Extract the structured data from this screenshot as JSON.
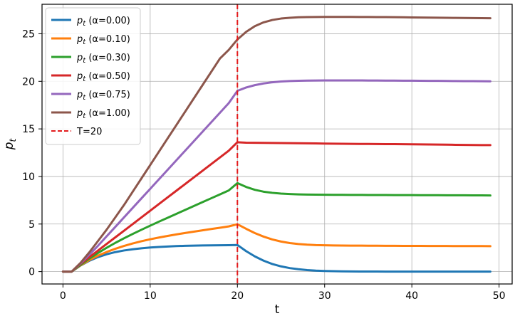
{
  "chart_data": {
    "type": "line",
    "title": "",
    "xlabel": "t",
    "ylabel": "p_t",
    "xlim": [
      -2.4,
      51.5
    ],
    "ylim": [
      -1.3,
      28.1
    ],
    "xticks": [
      0,
      10,
      20,
      30,
      40,
      50
    ],
    "yticks": [
      0,
      5,
      10,
      15,
      20,
      25
    ],
    "grid": true,
    "legend_position": "top-left",
    "x": [
      0,
      1,
      2,
      3,
      4,
      5,
      6,
      7,
      8,
      9,
      10,
      11,
      12,
      13,
      14,
      15,
      16,
      17,
      18,
      19,
      20,
      21,
      22,
      23,
      24,
      25,
      26,
      27,
      28,
      29,
      30,
      31,
      32,
      33,
      34,
      35,
      36,
      37,
      38,
      39,
      40,
      41,
      42,
      43,
      44,
      45,
      46,
      47,
      48,
      49
    ],
    "series": [
      {
        "name": "p_t (α=0.00)",
        "color": "#1f77b4",
        "values": [
          0,
          0,
          0.63,
          1.13,
          1.52,
          1.82,
          2.05,
          2.22,
          2.35,
          2.45,
          2.53,
          2.59,
          2.64,
          2.68,
          2.71,
          2.73,
          2.75,
          2.76,
          2.77,
          2.78,
          2.8,
          2.15,
          1.6,
          1.15,
          0.8,
          0.55,
          0.37,
          0.25,
          0.16,
          0.1,
          0.07,
          0.05,
          0.03,
          0.02,
          0.01,
          0.01,
          0.01,
          0.0,
          0.0,
          0.0,
          0.0,
          0.0,
          0.0,
          0.0,
          0.0,
          0.0,
          0.0,
          0.0,
          0.0,
          0.0
        ]
      },
      {
        "name": "p_t (α=0.10)",
        "color": "#ff7f0e",
        "values": [
          0,
          0,
          0.65,
          1.2,
          1.67,
          2.06,
          2.4,
          2.7,
          2.96,
          3.19,
          3.4,
          3.58,
          3.75,
          3.91,
          4.06,
          4.2,
          4.34,
          4.48,
          4.61,
          4.75,
          4.98,
          4.5,
          4.05,
          3.68,
          3.38,
          3.16,
          3.0,
          2.9,
          2.83,
          2.79,
          2.77,
          2.75,
          2.74,
          2.73,
          2.73,
          2.72,
          2.72,
          2.71,
          2.71,
          2.7,
          2.7,
          2.7,
          2.69,
          2.69,
          2.69,
          2.68,
          2.68,
          2.68,
          2.68,
          2.67
        ]
      },
      {
        "name": "p_t (α=0.30)",
        "color": "#2ca02c",
        "values": [
          0,
          0,
          0.7,
          1.35,
          1.95,
          2.5,
          3.02,
          3.5,
          3.96,
          4.4,
          4.83,
          5.25,
          5.66,
          6.07,
          6.48,
          6.89,
          7.3,
          7.71,
          8.12,
          8.53,
          9.3,
          8.9,
          8.6,
          8.4,
          8.28,
          8.2,
          8.15,
          8.12,
          8.1,
          8.09,
          8.08,
          8.07,
          8.07,
          8.06,
          8.06,
          8.05,
          8.05,
          8.05,
          8.04,
          8.04,
          8.04,
          8.03,
          8.03,
          8.03,
          8.02,
          8.02,
          8.02,
          8.01,
          8.01,
          8.0
        ]
      },
      {
        "name": "p_t (α=0.50)",
        "color": "#d62728",
        "values": [
          0,
          0,
          0.8,
          1.5,
          2.2,
          2.9,
          3.6,
          4.3,
          5.0,
          5.7,
          6.4,
          7.1,
          7.8,
          8.5,
          9.2,
          9.9,
          10.6,
          11.3,
          12.0,
          12.7,
          13.6,
          13.55,
          13.54,
          13.53,
          13.52,
          13.51,
          13.5,
          13.49,
          13.48,
          13.47,
          13.46,
          13.45,
          13.44,
          13.43,
          13.42,
          13.42,
          13.41,
          13.4,
          13.4,
          13.39,
          13.38,
          13.37,
          13.36,
          13.35,
          13.34,
          13.33,
          13.32,
          13.31,
          13.3,
          13.3
        ]
      },
      {
        "name": "p_t (α=0.75)",
        "color": "#9467bd",
        "values": [
          0,
          0,
          0.85,
          1.75,
          2.7,
          3.7,
          4.7,
          5.7,
          6.7,
          7.7,
          8.7,
          9.7,
          10.7,
          11.7,
          12.7,
          13.7,
          14.7,
          15.7,
          16.7,
          17.7,
          19.0,
          19.35,
          19.6,
          19.78,
          19.9,
          19.98,
          20.03,
          20.06,
          20.08,
          20.09,
          20.1,
          20.1,
          20.1,
          20.1,
          20.1,
          20.09,
          20.09,
          20.08,
          20.08,
          20.07,
          20.07,
          20.06,
          20.05,
          20.05,
          20.04,
          20.03,
          20.02,
          20.02,
          20.01,
          20.0
        ]
      },
      {
        "name": "p_t (α=1.00)",
        "color": "#8c564b",
        "values": [
          0,
          0,
          0.9,
          2.0,
          3.2,
          4.4,
          5.7,
          7.0,
          8.4,
          9.8,
          11.2,
          12.6,
          14.0,
          15.4,
          16.8,
          18.2,
          19.6,
          21.0,
          22.4,
          23.3,
          24.4,
          25.2,
          25.8,
          26.2,
          26.45,
          26.6,
          26.68,
          26.73,
          26.75,
          26.76,
          26.77,
          26.77,
          26.77,
          26.77,
          26.76,
          26.76,
          26.75,
          26.75,
          26.74,
          26.73,
          26.72,
          26.71,
          26.7,
          26.69,
          26.68,
          26.67,
          26.66,
          26.65,
          26.64,
          26.63
        ]
      }
    ],
    "reference_line": {
      "name": "T=20",
      "x": 20,
      "color": "#e31a1c",
      "style": "dashed"
    }
  }
}
